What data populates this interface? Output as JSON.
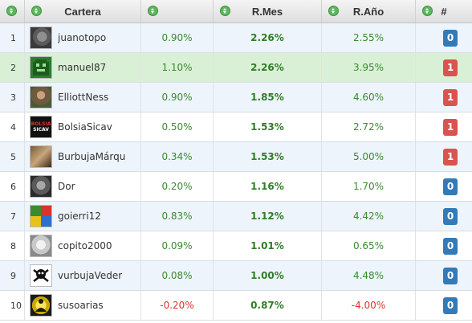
{
  "header": {
    "cartera": "Cartera",
    "r_mes": "R.Mes",
    "r_ano": "R.Año",
    "hash": "#"
  },
  "colors": {
    "sort_icon": "#5cb85c",
    "positive": "#3a8a30",
    "negative": "#d9342b",
    "badge_blue": "#337ab7",
    "badge_red": "#d9534f",
    "row_highlight": "#d9f0d6"
  },
  "rows": [
    {
      "rank": "1",
      "user": "juanotopo",
      "perf": "0.90%",
      "mes": "2.26%",
      "ano": "2.55%",
      "badge": "0",
      "badge_color": "blue",
      "avatar_icon": "koala-photo-icon"
    },
    {
      "rank": "2",
      "user": "manuel87",
      "perf": "1.10%",
      "mes": "2.26%",
      "ano": "3.95%",
      "badge": "1",
      "badge_color": "red",
      "avatar_icon": "pixel-monster-icon"
    },
    {
      "rank": "3",
      "user": "ElliottNess",
      "perf": "0.90%",
      "mes": "1.85%",
      "ano": "4.60%",
      "badge": "1",
      "badge_color": "red",
      "avatar_icon": "animal-photo-icon"
    },
    {
      "rank": "4",
      "user": "BolsiaSicav",
      "perf": "0.50%",
      "mes": "1.53%",
      "ano": "2.72%",
      "badge": "1",
      "badge_color": "red",
      "avatar_icon": "bolsia-sicav-logo-icon",
      "avatar_text": [
        "BOLSIA",
        "SICAV"
      ]
    },
    {
      "rank": "5",
      "user": "BurbujaMárqu",
      "perf": "0.34%",
      "mes": "1.53%",
      "ano": "5.00%",
      "badge": "1",
      "badge_color": "red",
      "avatar_icon": "horse-photo-icon"
    },
    {
      "rank": "6",
      "user": "Dor",
      "perf": "0.20%",
      "mes": "1.16%",
      "ano": "1.70%",
      "badge": "0",
      "badge_color": "blue",
      "avatar_icon": "face-photo-icon"
    },
    {
      "rank": "7",
      "user": "goierri12",
      "perf": "0.83%",
      "mes": "1.12%",
      "ano": "4.42%",
      "badge": "0",
      "badge_color": "blue",
      "avatar_icon": "mosaic-icon"
    },
    {
      "rank": "8",
      "user": "copito2000",
      "perf": "0.09%",
      "mes": "1.01%",
      "ano": "0.65%",
      "badge": "0",
      "badge_color": "blue",
      "avatar_icon": "gorilla-photo-icon"
    },
    {
      "rank": "9",
      "user": "vurbujaVeder",
      "perf": "0.08%",
      "mes": "1.00%",
      "ano": "4.48%",
      "badge": "0",
      "badge_color": "blue",
      "avatar_icon": "skull-crossbones-icon"
    },
    {
      "rank": "10",
      "user": "susoarias",
      "perf": "-0.20%",
      "mes": "0.87%",
      "ano": "-4.00%",
      "badge": "0",
      "badge_color": "blue",
      "avatar_icon": "meditation-silhouette-icon"
    }
  ]
}
